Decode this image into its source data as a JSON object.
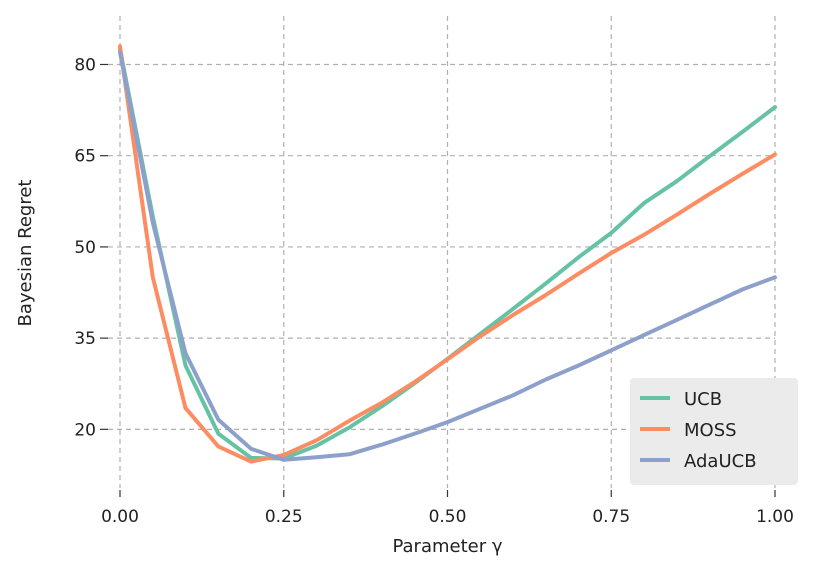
{
  "chart_data": {
    "type": "line",
    "xlabel": "Parameter γ",
    "ylabel": "Bayesian Regret",
    "xlim": [
      0.0,
      1.0
    ],
    "ylim": [
      12,
      86
    ],
    "xticks": [
      0.0,
      0.25,
      0.5,
      0.75,
      1.0
    ],
    "xtick_labels": [
      "0.00",
      "0.25",
      "0.50",
      "0.75",
      "1.00"
    ],
    "yticks": [
      20,
      35,
      50,
      65,
      80
    ],
    "ytick_labels": [
      "20",
      "35",
      "50",
      "65",
      "80"
    ],
    "grid": true,
    "legend_position": "bottom-right",
    "series": [
      {
        "name": "UCB",
        "color": "#66c2a5",
        "x": [
          0.0,
          0.05,
          0.1,
          0.15,
          0.2,
          0.25,
          0.3,
          0.35,
          0.4,
          0.45,
          0.5,
          0.55,
          0.6,
          0.65,
          0.7,
          0.75,
          0.8,
          0.85,
          0.9,
          0.95,
          1.0
        ],
        "y": [
          82.5,
          55,
          30.5,
          19.3,
          15.3,
          15.2,
          17.3,
          20.3,
          23.8,
          27.6,
          31.6,
          35.7,
          39.8,
          44.0,
          48.3,
          52.3,
          57.2,
          60.8,
          64.9,
          68.9,
          73.0
        ]
      },
      {
        "name": "MOSS",
        "color": "#fc8d62",
        "x": [
          0.0,
          0.05,
          0.1,
          0.15,
          0.2,
          0.25,
          0.3,
          0.35,
          0.4,
          0.45,
          0.5,
          0.55,
          0.6,
          0.65,
          0.7,
          0.75,
          0.8,
          0.85,
          0.9,
          0.95,
          1.0
        ],
        "y": [
          83.0,
          45.0,
          23.5,
          17.2,
          14.7,
          15.8,
          18.2,
          21.4,
          24.4,
          27.8,
          31.5,
          35.3,
          38.8,
          42.1,
          45.6,
          49.0,
          52.0,
          55.3,
          58.7,
          62.0,
          65.2
        ]
      },
      {
        "name": "AdaUCB",
        "color": "#8da0cb",
        "x": [
          0.0,
          0.05,
          0.1,
          0.15,
          0.2,
          0.25,
          0.3,
          0.35,
          0.4,
          0.45,
          0.5,
          0.55,
          0.6,
          0.65,
          0.7,
          0.75,
          0.8,
          0.85,
          0.9,
          0.95,
          1.0
        ],
        "y": [
          82.0,
          54.0,
          32.5,
          21.6,
          16.8,
          15.0,
          15.4,
          15.9,
          17.5,
          19.3,
          21.2,
          23.4,
          25.6,
          28.2,
          30.5,
          33.0,
          35.5,
          38.0,
          40.5,
          43.0,
          45.0
        ]
      }
    ]
  }
}
